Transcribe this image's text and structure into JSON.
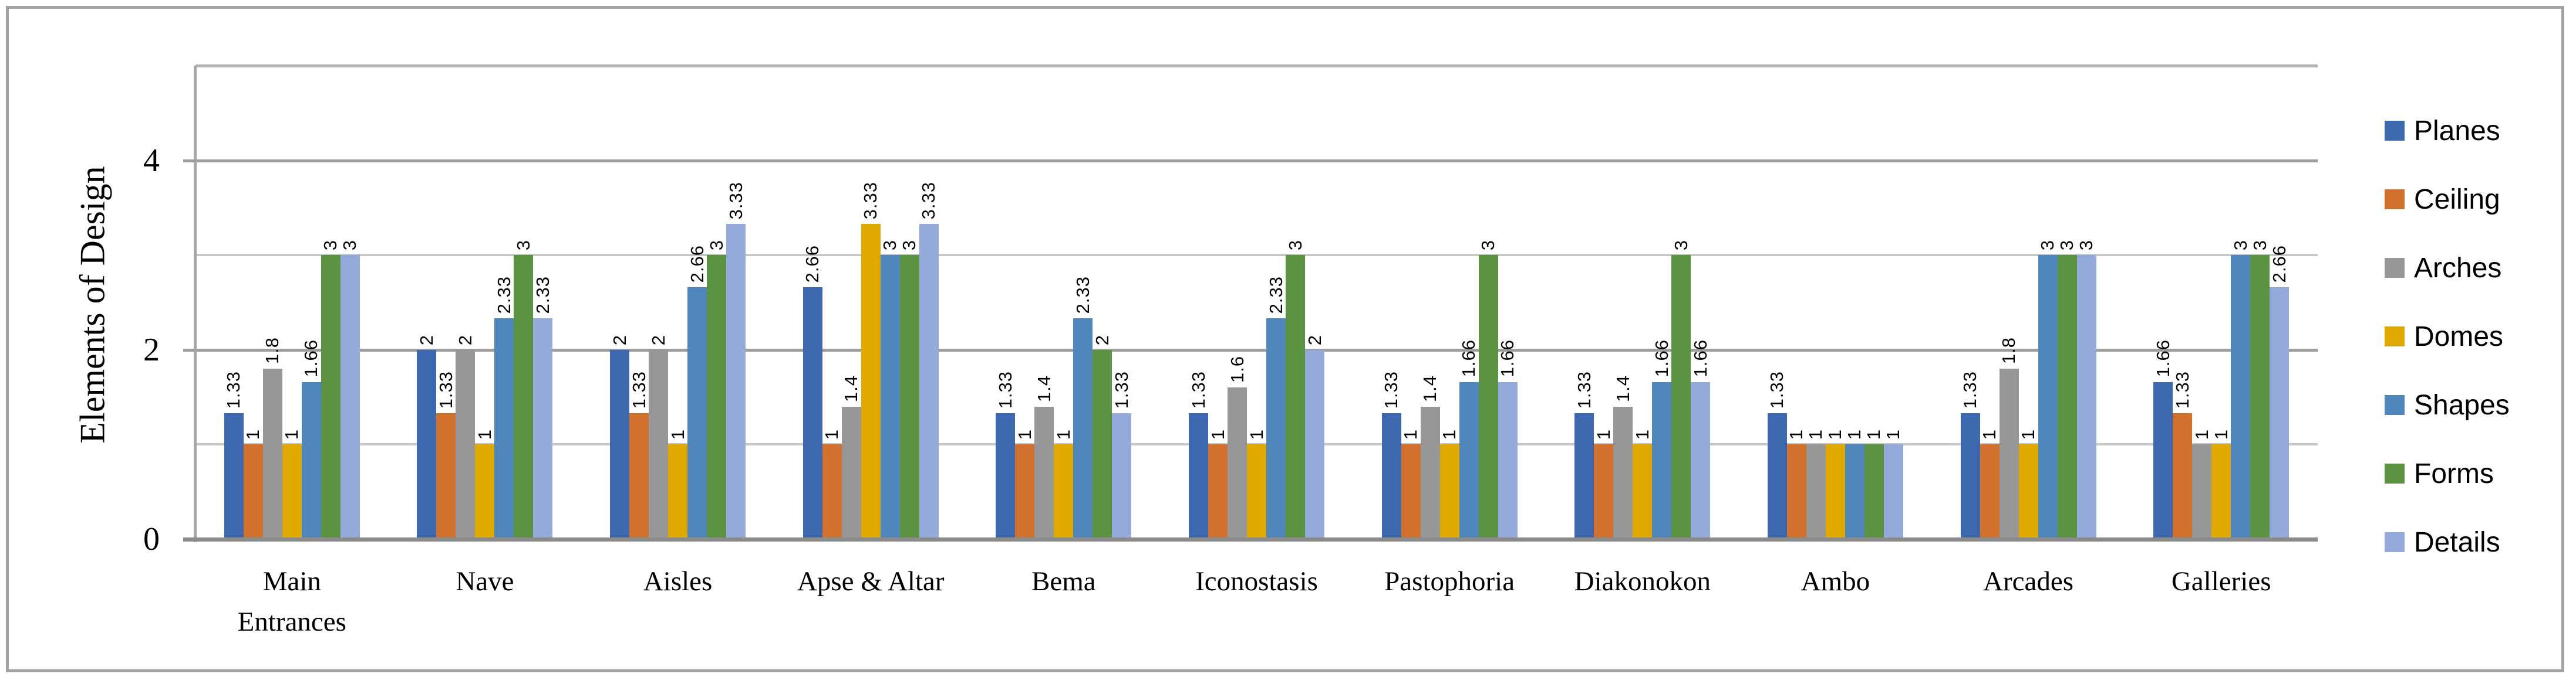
{
  "figure": {
    "background": "#FFFFFF",
    "border_color": "#A3A3A3"
  },
  "chart_data": {
    "type": "bar",
    "title": "",
    "xlabel": "",
    "ylabel": "Elements of Design",
    "categories": [
      "Main Entrances",
      "Nave",
      "Aisles",
      "Apse & Altar",
      "Bema",
      "Iconostasis",
      "Pastophoria",
      "Diakonokon",
      "Ambo",
      "Arcades",
      "Galleries"
    ],
    "series": [
      {
        "name": "Planes",
        "color": "#3D67AF",
        "values": [
          1.33,
          2,
          2,
          2.66,
          1.33,
          1.33,
          1.33,
          1.33,
          1.33,
          1.33,
          1.66
        ]
      },
      {
        "name": "Ceiling",
        "color": "#D2712E",
        "values": [
          1,
          1.33,
          1.33,
          1,
          1,
          1,
          1,
          1,
          1,
          1,
          1.33
        ]
      },
      {
        "name": "Arches",
        "color": "#979797",
        "values": [
          1.8,
          2,
          2,
          1.4,
          1.4,
          1.6,
          1.4,
          1.4,
          1,
          1.8,
          1
        ]
      },
      {
        "name": "Domes",
        "color": "#E0A900",
        "values": [
          1,
          1,
          1,
          3.33,
          1,
          1,
          1,
          1,
          1,
          1,
          1
        ]
      },
      {
        "name": "Shapes",
        "color": "#4F86BC",
        "values": [
          1.66,
          2.33,
          2.66,
          3,
          2.33,
          2.33,
          1.66,
          1.66,
          1,
          3,
          3
        ]
      },
      {
        "name": "Forms",
        "color": "#5C9342",
        "values": [
          3,
          3,
          3,
          3,
          2,
          3,
          3,
          3,
          1,
          3,
          3
        ]
      },
      {
        "name": "Details",
        "color": "#94AADA",
        "values": [
          3,
          2.33,
          3.33,
          3.33,
          1.33,
          2,
          1.66,
          1.66,
          1,
          3,
          2.66
        ]
      }
    ],
    "ylim": [
      0,
      5
    ],
    "y_ticks": [
      {
        "value": 0,
        "label": "0"
      },
      {
        "value": 2,
        "label": "2"
      },
      {
        "value": 4,
        "label": "4"
      }
    ],
    "minor_gridlines": [
      1,
      3
    ],
    "major_gridlines": [
      2,
      4
    ],
    "top_border_value": 5,
    "grid": true,
    "data_labels": true,
    "legend_position": "right"
  }
}
